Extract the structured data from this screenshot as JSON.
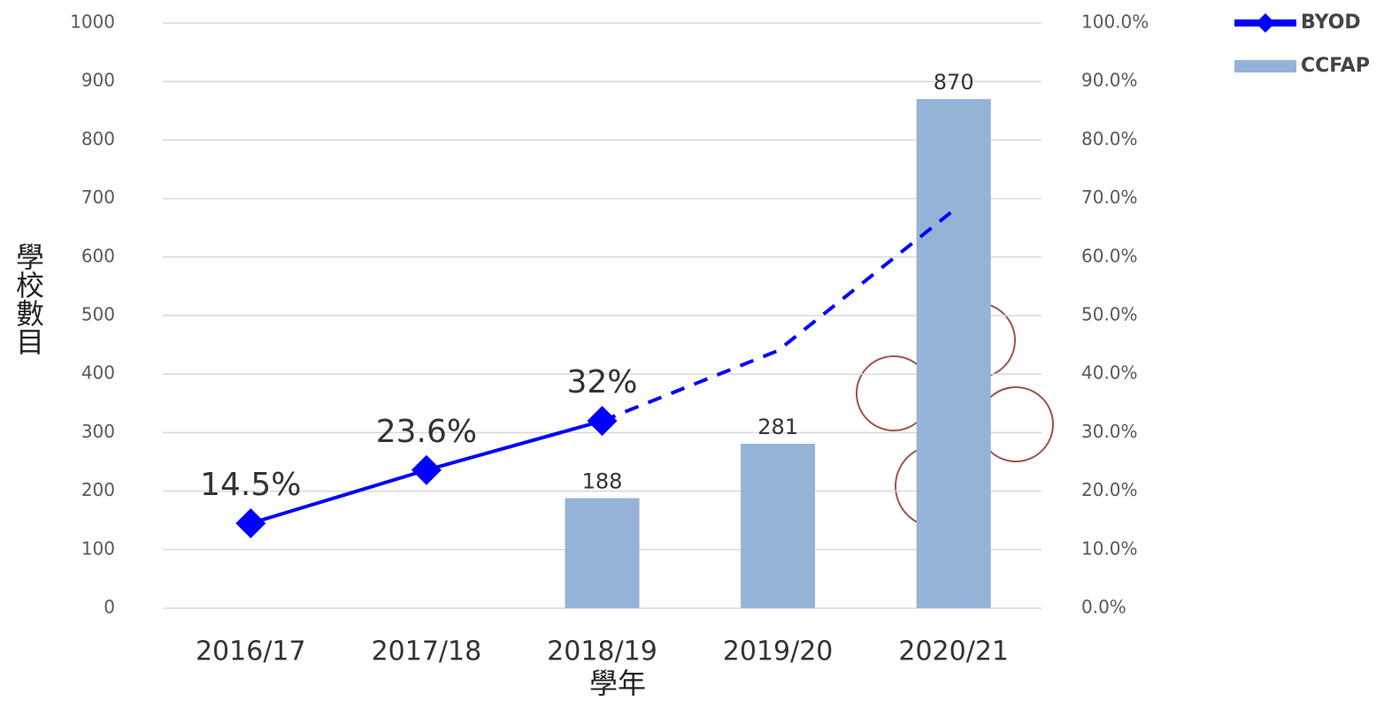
{
  "chart_data": {
    "type": "combo",
    "x_label": "學年",
    "y_label": "學校數目",
    "categories": [
      "2016/17",
      "2017/18",
      "2018/19",
      "2019/20",
      "2020/21"
    ],
    "series": [
      {
        "name": "BYOD",
        "type": "line",
        "axis": "y2",
        "color": "#0000ff",
        "values": [
          14.5,
          23.6,
          32,
          null,
          null
        ],
        "value_labels": [
          "14.5%",
          "23.6%",
          "32%",
          null,
          null
        ],
        "projection": [
          null,
          null,
          32,
          44,
          68
        ]
      },
      {
        "name": "CCFAP",
        "type": "bar",
        "color": "#95b3d7",
        "values": [
          null,
          null,
          188,
          281,
          870
        ]
      }
    ],
    "ylim": [
      0,
      1000
    ],
    "yticks": [
      0,
      100,
      200,
      300,
      400,
      500,
      600,
      700,
      800,
      900,
      1000
    ],
    "y2lim": [
      0,
      100
    ],
    "y2ticks": [
      {
        "value": 0,
        "label": "0.0%"
      },
      {
        "value": 10,
        "label": "10.0%"
      },
      {
        "value": 20,
        "label": "20.0%"
      },
      {
        "value": 30,
        "label": "30.0%"
      },
      {
        "value": 40,
        "label": "40.0%"
      },
      {
        "value": 50,
        "label": "50.0%"
      },
      {
        "value": 60,
        "label": "60.0%"
      },
      {
        "value": 70,
        "label": "70.0%"
      },
      {
        "value": 80,
        "label": "80.0%"
      },
      {
        "value": 90,
        "label": "90.0%"
      },
      {
        "value": 100,
        "label": "100.0%"
      }
    ],
    "grid": true
  }
}
